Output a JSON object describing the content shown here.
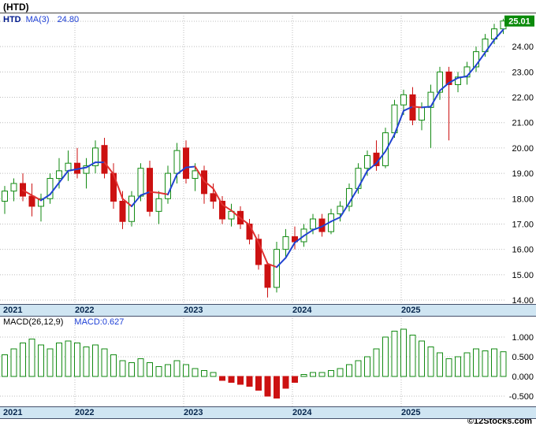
{
  "title": "(HTD)",
  "legend": {
    "symbol": "HTD",
    "ma_label": "MA(3)",
    "ma_value": "24.80"
  },
  "price_tag": "25.01",
  "macd_legend": {
    "label": "MACD(26,12,9)",
    "value_label": "MACD:0.627"
  },
  "footer": "©12Stocks.com",
  "colors": {
    "up_candle": "#128a12",
    "down_candle": "#cc1111",
    "ma_up": "#2143d1",
    "ma_down": "#e03131",
    "grid": "#bcbcbc",
    "price_tag_bg": "#0a8a0a",
    "price_tag_text": "#ffffff",
    "band_bg": "#cfe5f2",
    "macd_pos_stroke": "#128a12",
    "macd_neg_fill": "#cc1111"
  },
  "chart_data": [
    {
      "type": "candlestick",
      "panel": "price",
      "title": "HTD monthly candlesticks with MA(3) overlay",
      "x_months": [
        "2021-05",
        "2021-06",
        "2021-07",
        "2021-08",
        "2021-09",
        "2021-10",
        "2021-11",
        "2021-12",
        "2022-01",
        "2022-02",
        "2022-03",
        "2022-04",
        "2022-05",
        "2022-06",
        "2022-07",
        "2022-08",
        "2022-09",
        "2022-10",
        "2022-11",
        "2022-12",
        "2023-01",
        "2023-02",
        "2023-03",
        "2023-04",
        "2023-05",
        "2023-06",
        "2023-07",
        "2023-08",
        "2023-09",
        "2023-10",
        "2023-11",
        "2023-12",
        "2024-01",
        "2024-02",
        "2024-03",
        "2024-04",
        "2024-05",
        "2024-06",
        "2024-07",
        "2024-08",
        "2024-09",
        "2024-10",
        "2024-11",
        "2024-12",
        "2025-01",
        "2025-02",
        "2025-03",
        "2025-04",
        "2025-05",
        "2025-06",
        "2025-07",
        "2025-08",
        "2025-09",
        "2025-10",
        "2025-11",
        "2025-12"
      ],
      "ohlc": [
        [
          17.9,
          18.5,
          17.4,
          18.3
        ],
        [
          18.3,
          18.8,
          17.9,
          18.6
        ],
        [
          18.6,
          19.0,
          17.9,
          18.1
        ],
        [
          18.1,
          18.6,
          17.3,
          17.7
        ],
        [
          17.7,
          18.2,
          17.1,
          18.0
        ],
        [
          18.0,
          19.0,
          17.8,
          18.8
        ],
        [
          18.8,
          19.6,
          18.4,
          19.1
        ],
        [
          19.1,
          19.9,
          18.7,
          19.4
        ],
        [
          19.4,
          20.0,
          18.8,
          19.0
        ],
        [
          19.0,
          19.6,
          18.4,
          19.3
        ],
        [
          19.3,
          20.3,
          19.0,
          20.0
        ],
        [
          20.1,
          20.4,
          18.8,
          19.0
        ],
        [
          19.0,
          19.4,
          17.6,
          17.9
        ],
        [
          17.9,
          18.3,
          16.8,
          17.1
        ],
        [
          17.1,
          18.3,
          16.9,
          18.1
        ],
        [
          18.1,
          19.4,
          17.9,
          19.2
        ],
        [
          19.2,
          19.5,
          17.3,
          17.5
        ],
        [
          17.5,
          18.3,
          17.0,
          18.0
        ],
        [
          18.0,
          19.3,
          17.8,
          19.0
        ],
        [
          19.0,
          20.2,
          18.6,
          19.9
        ],
        [
          20.0,
          20.3,
          18.6,
          18.8
        ],
        [
          18.8,
          19.4,
          18.3,
          19.1
        ],
        [
          19.1,
          19.3,
          17.8,
          18.2
        ],
        [
          18.2,
          18.6,
          17.6,
          17.9
        ],
        [
          17.9,
          18.1,
          17.0,
          17.2
        ],
        [
          17.2,
          17.8,
          16.9,
          17.5
        ],
        [
          17.5,
          17.7,
          16.8,
          17.0
        ],
        [
          17.0,
          17.2,
          16.2,
          16.4
        ],
        [
          16.4,
          16.6,
          15.2,
          15.4
        ],
        [
          15.4,
          15.5,
          14.1,
          14.5
        ],
        [
          14.5,
          16.3,
          14.3,
          16.0
        ],
        [
          16.0,
          16.8,
          15.7,
          16.5
        ],
        [
          16.5,
          16.9,
          16.0,
          16.3
        ],
        [
          16.3,
          17.0,
          16.1,
          16.8
        ],
        [
          16.8,
          17.4,
          16.6,
          17.2
        ],
        [
          17.2,
          17.4,
          16.5,
          16.7
        ],
        [
          16.7,
          17.6,
          16.6,
          17.4
        ],
        [
          17.4,
          17.9,
          17.1,
          17.7
        ],
        [
          17.7,
          18.6,
          17.5,
          18.4
        ],
        [
          18.4,
          19.4,
          18.2,
          19.2
        ],
        [
          19.2,
          19.9,
          18.9,
          19.7
        ],
        [
          19.8,
          20.3,
          19.1,
          19.3
        ],
        [
          19.3,
          20.8,
          19.2,
          20.6
        ],
        [
          20.6,
          21.9,
          20.4,
          21.7
        ],
        [
          21.7,
          22.3,
          21.3,
          22.1
        ],
        [
          22.1,
          22.4,
          20.9,
          21.1
        ],
        [
          21.1,
          21.8,
          20.7,
          21.6
        ],
        [
          21.6,
          22.5,
          20.0,
          22.2
        ],
        [
          22.2,
          23.2,
          21.9,
          23.0
        ],
        [
          23.0,
          23.2,
          20.3,
          22.5
        ],
        [
          22.5,
          23.0,
          22.2,
          22.8
        ],
        [
          22.8,
          23.4,
          22.5,
          23.2
        ],
        [
          23.2,
          24.0,
          23.0,
          23.8
        ],
        [
          23.8,
          24.5,
          23.6,
          24.3
        ],
        [
          24.3,
          24.9,
          24.1,
          24.7
        ],
        [
          24.7,
          25.1,
          24.5,
          25.01
        ]
      ],
      "overlay": {
        "name": "MA(3)",
        "window": 3,
        "current_value": 24.8
      },
      "last_price": 25.01,
      "ylim": [
        13.8,
        25.6
      ],
      "y_tick_labels": [
        "25.00",
        "24.00",
        "23.00",
        "22.00",
        "21.00",
        "20.00",
        "19.00",
        "18.00",
        "17.00",
        "16.00",
        "15.00",
        "14.00"
      ],
      "x_tick_years": [
        "2021",
        "2022",
        "2023",
        "2024",
        "2025"
      ],
      "grid": true,
      "legend_position": "top-left"
    },
    {
      "type": "bar",
      "panel": "macd",
      "title": "MACD(26,12,9) histogram",
      "current_value": 0.627,
      "values": [
        0.55,
        0.7,
        0.85,
        0.95,
        0.8,
        0.7,
        0.85,
        0.9,
        0.85,
        0.75,
        0.8,
        0.7,
        0.55,
        0.4,
        0.35,
        0.45,
        0.35,
        0.25,
        0.3,
        0.4,
        0.3,
        0.2,
        0.15,
        0.1,
        -0.1,
        -0.15,
        -0.2,
        -0.25,
        -0.35,
        -0.5,
        -0.55,
        -0.3,
        -0.15,
        0.05,
        0.1,
        0.1,
        0.15,
        0.2,
        0.3,
        0.4,
        0.5,
        0.7,
        1.0,
        1.15,
        1.2,
        1.05,
        0.9,
        0.75,
        0.6,
        0.45,
        0.5,
        0.6,
        0.7,
        0.65,
        0.7,
        0.627
      ],
      "ylim": [
        -0.75,
        1.45
      ],
      "y_tick_labels": [
        "1.000",
        "0.500",
        "0.000",
        "-0.500"
      ],
      "x_tick_years": [
        "2021",
        "2022",
        "2023",
        "2024",
        "2025"
      ],
      "grid": true
    }
  ]
}
